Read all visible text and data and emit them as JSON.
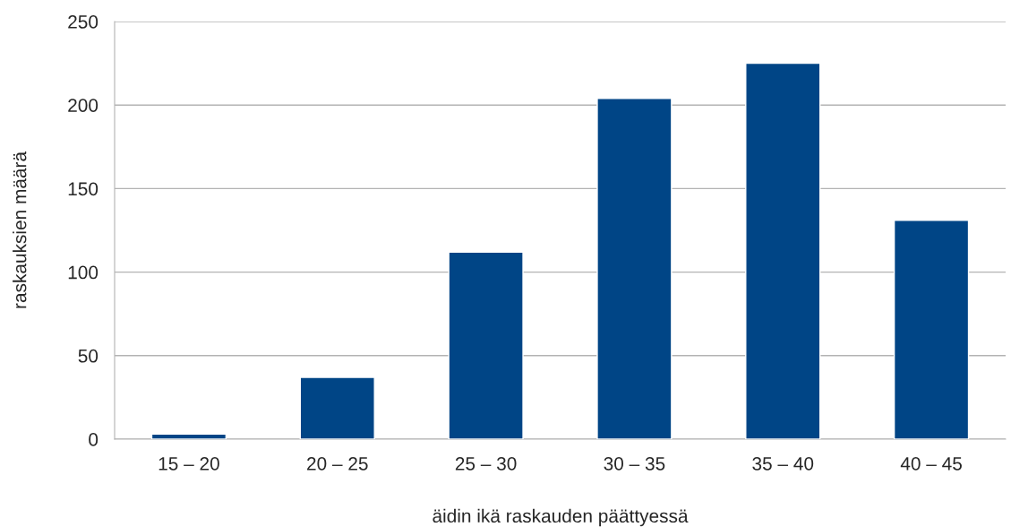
{
  "chart_data": {
    "type": "bar",
    "xlabel": "äidin ikä raskauden päättyessä",
    "ylabel": "raskauksien määrä",
    "categories": [
      "15 – 20",
      "20 – 25",
      "25 – 30",
      "30 – 35",
      "35 – 40",
      "40 – 45"
    ],
    "values": [
      3,
      37,
      112,
      204,
      225,
      131
    ],
    "color": "#004586",
    "ylim": [
      0,
      250
    ],
    "yticks": [
      0,
      50,
      100,
      150,
      200,
      250
    ],
    "grid": "y",
    "legend": false
  }
}
